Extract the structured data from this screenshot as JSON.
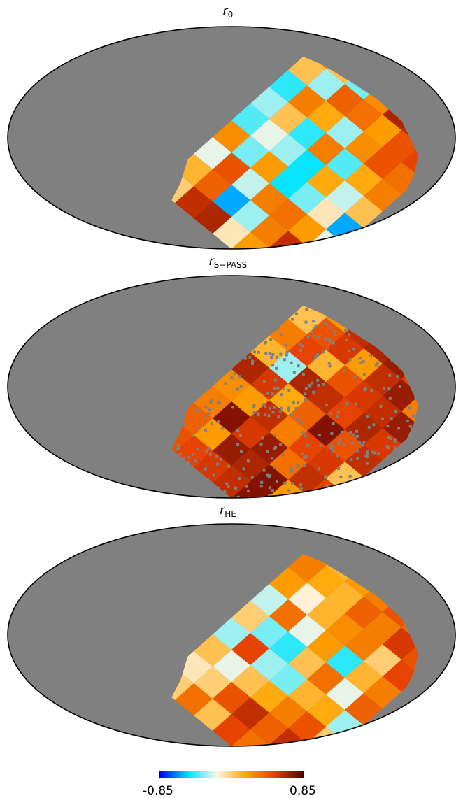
{
  "chart_data": [
    {
      "type": "heatmap",
      "projection": "mollweide",
      "title_symbol": "r",
      "title_subscript": "0",
      "background_color": "#808080",
      "colormap": [
        "#0000ff",
        "#00e5ff",
        "#fff5e6",
        "#ffa500",
        "#e64000",
        "#5a0000"
      ],
      "vmin": -0.85,
      "vmax": 0.85,
      "region": "patched region of the southern-galactic sky",
      "values": [
        [
          0.35,
          0.5,
          0.2,
          -0.1,
          0.65,
          0.6,
          0.0
        ],
        [
          0.45,
          0.6,
          0.3,
          -0.3,
          -0.6,
          0.4,
          0.1
        ],
        [
          -0.2,
          0.2,
          0.35,
          0.3,
          -0.25,
          0.45,
          -0.2
        ],
        [
          -0.6,
          -0.1,
          -0.35,
          -0.5,
          0.2,
          -0.35,
          0.25
        ],
        [
          0.05,
          -0.25,
          0.15,
          -0.5,
          -0.3,
          -0.2,
          -0.4
        ],
        [
          0.3,
          0.15,
          -0.4,
          0.3,
          -0.45,
          0.05,
          -0.3
        ],
        [
          0.35,
          0.45,
          0.25,
          -0.3,
          0.15,
          0.3,
          -0.45
        ],
        [
          0.5,
          0.45,
          0.2,
          0.35,
          0.4,
          -0.3,
          0.05
        ],
        [
          0.55,
          0.6,
          0.65,
          0.25,
          -0.35,
          0.05,
          0.3
        ],
        [
          0.05,
          0.6,
          0.65,
          0.55,
          0.35,
          0.3,
          0.2
        ]
      ]
    },
    {
      "type": "heatmap",
      "projection": "mollweide",
      "title_symbol": "r",
      "title_subscript": "S−PASS",
      "background_color": "#808080",
      "colormap": [
        "#0000ff",
        "#00e5ff",
        "#fff5e6",
        "#ffa500",
        "#e64000",
        "#5a0000"
      ],
      "vmin": -0.85,
      "vmax": 0.85,
      "masked_pixels": "scattered grey speckles",
      "values": [
        [
          0.7,
          0.55,
          0.75,
          0.6,
          0.55,
          0.5,
          0.45
        ],
        [
          0.6,
          0.2,
          0.75,
          0.65,
          0.7,
          0.2,
          0.4
        ],
        [
          0.5,
          0.6,
          0.35,
          0.7,
          0.55,
          0.75,
          0.3
        ],
        [
          0.05,
          0.55,
          0.5,
          0.3,
          0.6,
          0.2,
          0.25
        ],
        [
          0.6,
          0.45,
          0.75,
          0.4,
          0.15,
          0.55,
          0.65
        ],
        [
          0.55,
          0.65,
          0.5,
          0.6,
          0.65,
          -0.3,
          0.1
        ],
        [
          0.7,
          0.6,
          0.55,
          0.45,
          0.1,
          0.5,
          0.3
        ],
        [
          0.3,
          0.7,
          0.6,
          0.2,
          0.55,
          0.45,
          0.05
        ],
        [
          0.75,
          0.5,
          0.7,
          0.65,
          0.6,
          0.2,
          0.1
        ],
        [
          0.8,
          0.7,
          0.6,
          0.7,
          0.5,
          0.4,
          0.2
        ]
      ]
    },
    {
      "type": "heatmap",
      "projection": "mollweide",
      "title_symbol": "r",
      "title_subscript": "HE",
      "background_color": "#808080",
      "colormap": [
        "#0000ff",
        "#00e5ff",
        "#fff5e6",
        "#ffa500",
        "#e64000",
        "#5a0000"
      ],
      "vmin": -0.85,
      "vmax": 0.85,
      "values": [
        [
          0.25,
          0.5,
          0.35,
          0.5,
          0.05,
          0.35,
          0.0
        ],
        [
          0.5,
          0.6,
          0.4,
          0.6,
          0.45,
          0.0,
          -0.1
        ],
        [
          0.0,
          0.45,
          0.3,
          0.15,
          0.05,
          -0.2,
          0.05
        ],
        [
          -0.3,
          0.15,
          0.1,
          -0.35,
          -0.3,
          0.5,
          -0.3
        ],
        [
          0.4,
          -0.2,
          0.35,
          0.05,
          -0.45,
          -0.35,
          0.0
        ],
        [
          0.3,
          0.1,
          -0.45,
          0.2,
          -0.2,
          0.35,
          -0.25
        ],
        [
          0.5,
          0.0,
          0.3,
          0.25,
          0.1,
          -0.15,
          0.2
        ],
        [
          0.45,
          0.55,
          0.3,
          0.4,
          0.1,
          0.15,
          0.3
        ],
        [
          0.6,
          0.35,
          0.45,
          0.3,
          0.2,
          0.1,
          0.25
        ],
        [
          -0.25,
          0.55,
          0.7,
          0.6,
          0.3,
          0.2,
          0.15
        ]
      ]
    }
  ],
  "colorbar": {
    "min_label": "-0.85",
    "max_label": "0.85"
  }
}
